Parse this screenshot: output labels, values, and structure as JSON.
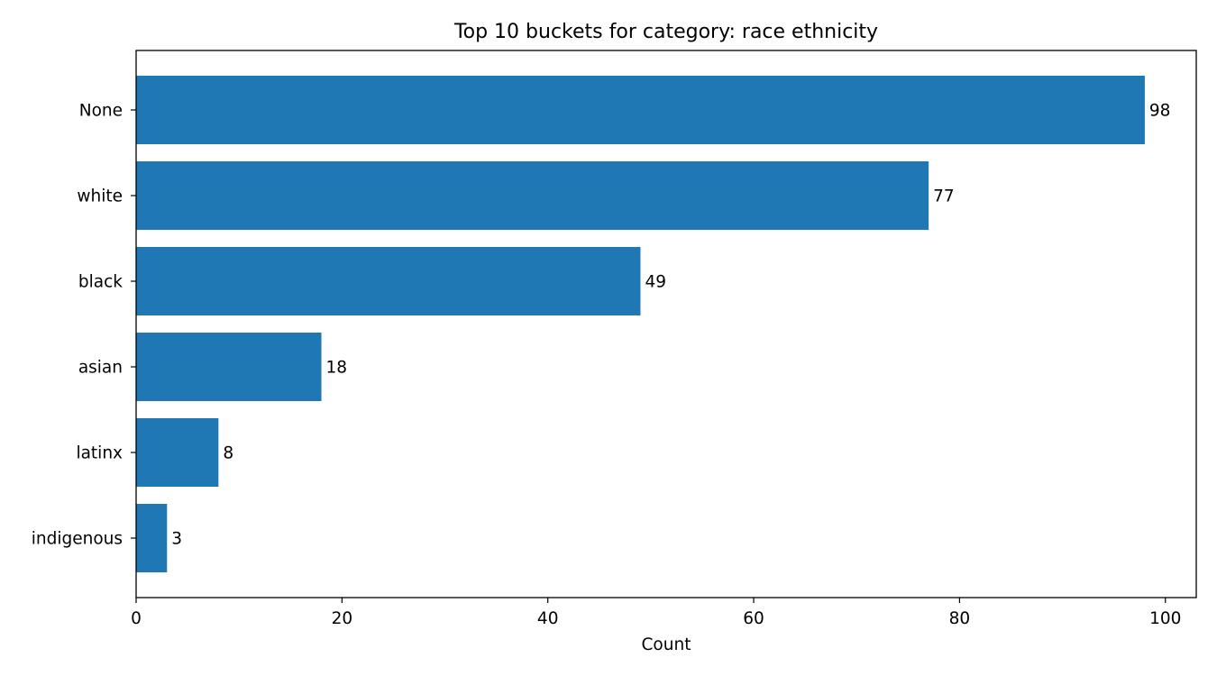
{
  "chart_data": {
    "type": "bar",
    "orientation": "horizontal",
    "title": "Top 10 buckets for category: race ethnicity",
    "xlabel": "Count",
    "ylabel": "",
    "categories": [
      "None",
      "white",
      "black",
      "asian",
      "latinx",
      "indigenous"
    ],
    "values": [
      98,
      77,
      49,
      18,
      8,
      3
    ],
    "data_labels": [
      "98",
      "77",
      "49",
      "18",
      "8",
      "3"
    ],
    "xlim": [
      0,
      103
    ],
    "xticks": [
      0,
      20,
      40,
      60,
      80,
      100
    ],
    "xtick_labels": [
      "0",
      "20",
      "40",
      "60",
      "80",
      "100"
    ],
    "grid": false,
    "legend": null,
    "colors": {
      "bar": "#1f77b4",
      "axis": "#000000"
    }
  }
}
